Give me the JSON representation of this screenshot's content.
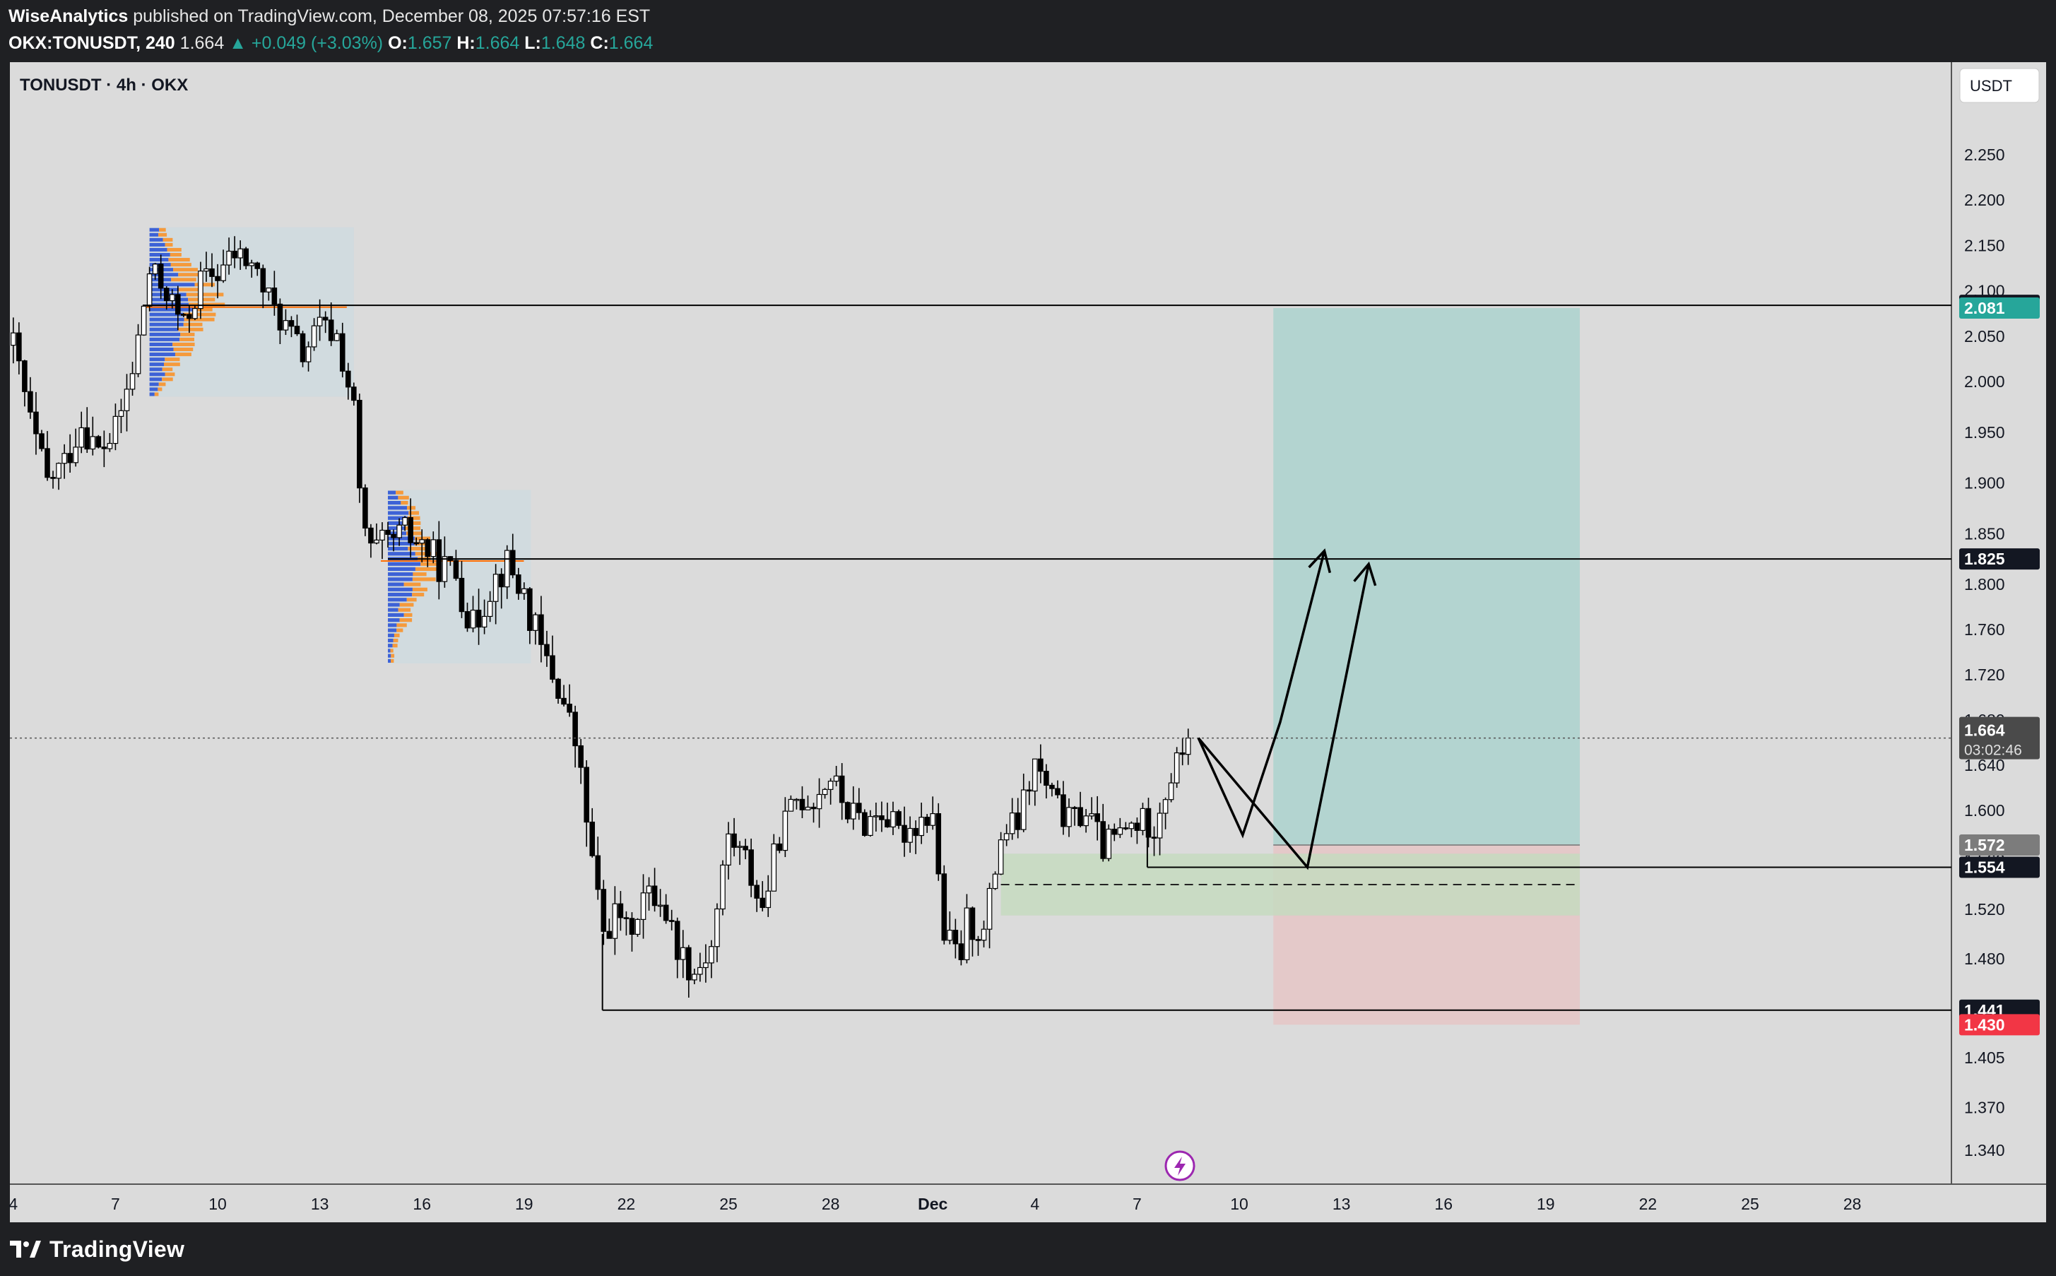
{
  "header": {
    "author": "WiseAnalytics",
    "published_text": "published on TradingView.com, December 08, 2025 07:57:16 EST",
    "symbol_line": "OKX:TONUSDT, 240",
    "last": "1.664",
    "change": "▲ +0.049 (+3.03%)",
    "o_label": "O:",
    "o_val": "1.657",
    "h_label": "H:",
    "h_val": "1.664",
    "l_label": "L:",
    "l_val": "1.648",
    "c_label": "C:",
    "c_val": "1.664"
  },
  "legend_title": "TONUSDT · 4h · OKX",
  "currency_button": "USDT",
  "footer_brand": "TradingView",
  "colors": {
    "up": "#26a69a",
    "down": "#ef5350",
    "chart_bg": "#dbdbdb",
    "target_zone": "#b3d4d0",
    "stop_zone": "#e4c9c9",
    "demand_zone": "#c5dac0",
    "profile_box": "#cfdadf",
    "profile_blue": "#3d62d6",
    "profile_orange": "#f59a3c"
  },
  "chart_data": {
    "type": "candlestick",
    "symbol": "TONUSDT",
    "timeframe": "4h",
    "exchange": "OKX",
    "ylim": [
      1.31,
      2.29
    ],
    "y_ticks": [
      "2.250",
      "2.200",
      "2.150",
      "2.100",
      "2.050",
      "2.000",
      "1.950",
      "1.900",
      "1.850",
      "1.800",
      "1.760",
      "1.720",
      "1.680",
      "1.640",
      "1.600",
      "1.560",
      "1.520",
      "1.480",
      "1.440",
      "1.405",
      "1.370",
      "1.340"
    ],
    "x_ticks": [
      {
        "label": "4",
        "day": 4
      },
      {
        "label": "7",
        "day": 7
      },
      {
        "label": "10",
        "day": 10
      },
      {
        "label": "13",
        "day": 13
      },
      {
        "label": "16",
        "day": 16
      },
      {
        "label": "19",
        "day": 19
      },
      {
        "label": "22",
        "day": 22
      },
      {
        "label": "25",
        "day": 25
      },
      {
        "label": "28",
        "day": 28
      },
      {
        "label": "Dec",
        "day": 31
      },
      {
        "label": "4",
        "day": 34
      },
      {
        "label": "7",
        "day": 37
      },
      {
        "label": "10",
        "day": 40
      },
      {
        "label": "13",
        "day": 43
      },
      {
        "label": "16",
        "day": 46
      },
      {
        "label": "19",
        "day": 49
      },
      {
        "label": "22",
        "day": 52
      },
      {
        "label": "25",
        "day": 55
      },
      {
        "label": "28",
        "day": 58
      }
    ],
    "close_path": [
      [
        4,
        2.04
      ],
      [
        4.5,
        1.96
      ],
      [
        5,
        1.9
      ],
      [
        5.5,
        1.92
      ],
      [
        6,
        1.96
      ],
      [
        6.5,
        1.93
      ],
      [
        7,
        1.95
      ],
      [
        7.5,
        2.01
      ],
      [
        8,
        2.12
      ],
      [
        8.5,
        2.1
      ],
      [
        9,
        2.06
      ],
      [
        9.5,
        2.11
      ],
      [
        10,
        2.12
      ],
      [
        10.5,
        2.14
      ],
      [
        11,
        2.13
      ],
      [
        11.5,
        2.09
      ],
      [
        12,
        2.06
      ],
      [
        12.5,
        2.03
      ],
      [
        13,
        2.06
      ],
      [
        13.5,
        2.05
      ],
      [
        14,
        1.97
      ],
      [
        14.2,
        1.87
      ],
      [
        14.5,
        1.83
      ],
      [
        15,
        1.84
      ],
      [
        15.5,
        1.85
      ],
      [
        16,
        1.84
      ],
      [
        16.5,
        1.82
      ],
      [
        17,
        1.81
      ],
      [
        17.5,
        1.76
      ],
      [
        18,
        1.8
      ],
      [
        18.5,
        1.82
      ],
      [
        19,
        1.79
      ],
      [
        19.5,
        1.74
      ],
      [
        20,
        1.71
      ],
      [
        20.5,
        1.66
      ],
      [
        21,
        1.56
      ],
      [
        21.3,
        1.5
      ],
      [
        21.8,
        1.52
      ],
      [
        22,
        1.5
      ],
      [
        22.5,
        1.53
      ],
      [
        23,
        1.53
      ],
      [
        23.5,
        1.49
      ],
      [
        24,
        1.47
      ],
      [
        24.5,
        1.49
      ],
      [
        25,
        1.58
      ],
      [
        25.5,
        1.56
      ],
      [
        26,
        1.52
      ],
      [
        26.5,
        1.58
      ],
      [
        27,
        1.61
      ],
      [
        27.5,
        1.61
      ],
      [
        28,
        1.63
      ],
      [
        28.5,
        1.6
      ],
      [
        29,
        1.59
      ],
      [
        29.5,
        1.6
      ],
      [
        30,
        1.58
      ],
      [
        30.5,
        1.59
      ],
      [
        31,
        1.6
      ],
      [
        31.3,
        1.5
      ],
      [
        31.8,
        1.48
      ],
      [
        32,
        1.51
      ],
      [
        32.5,
        1.5
      ],
      [
        33,
        1.58
      ],
      [
        33.5,
        1.59
      ],
      [
        34,
        1.64
      ],
      [
        34.5,
        1.61
      ],
      [
        35,
        1.59
      ],
      [
        35.5,
        1.6
      ],
      [
        36,
        1.57
      ],
      [
        36.5,
        1.58
      ],
      [
        37,
        1.59
      ],
      [
        37.5,
        1.59
      ],
      [
        38,
        1.63
      ],
      [
        38.5,
        1.664
      ]
    ],
    "levels": [
      {
        "label": "2.084",
        "value": 2.084
      },
      {
        "label": "1.825",
        "value": 1.825
      },
      {
        "label": "1.554",
        "value": 1.554
      },
      {
        "label": "1.441",
        "value": 1.441
      }
    ],
    "price_labels": [
      {
        "label": "2.081",
        "value": 2.081,
        "kind": "target"
      },
      {
        "label": "1.572",
        "value": 1.572,
        "kind": "entry"
      },
      {
        "label": "1.430",
        "value": 1.43,
        "kind": "stop"
      }
    ],
    "current_price": {
      "label": "1.664",
      "value": 1.664,
      "countdown": "03:02:46"
    },
    "position": {
      "entry": 1.572,
      "target": 2.081,
      "stop": 1.43,
      "from_day": 41.0,
      "to_day": 50.0
    },
    "demand_zone": {
      "top": 1.565,
      "bottom": 1.515,
      "mid": 1.54,
      "from_day": 33.0,
      "to_day": 50.0
    },
    "volume_profiles": [
      {
        "from_day": 8.0,
        "to_day": 14.0,
        "top": 2.17,
        "bottom": 1.985,
        "poc": 2.082
      },
      {
        "from_day": 15.0,
        "to_day": 19.2,
        "top": 1.893,
        "bottom": 1.73,
        "poc": 1.823
      }
    ],
    "projection_paths": [
      [
        [
          38.8,
          1.664
        ],
        [
          40.1,
          1.58
        ],
        [
          41.2,
          1.678
        ],
        [
          42.5,
          1.833
        ]
      ],
      [
        [
          38.8,
          1.664
        ],
        [
          42.0,
          1.554
        ],
        [
          43.8,
          1.82
        ]
      ]
    ]
  }
}
